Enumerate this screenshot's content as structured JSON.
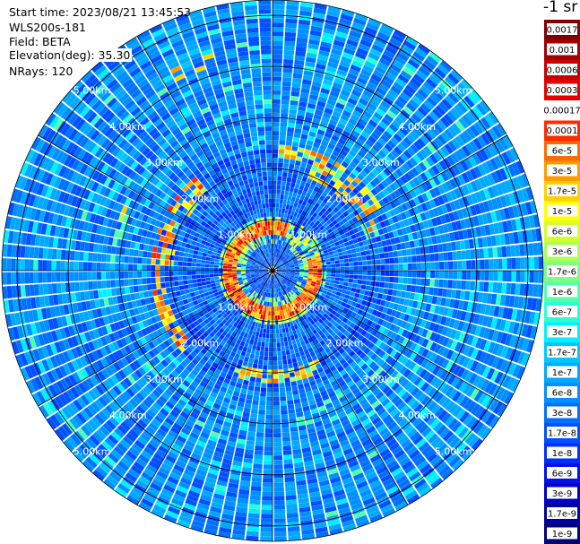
{
  "info": {
    "start_time": "Start time: 2023/08/21 13:45:53",
    "instrument": "WLS200s-181",
    "field": "Field: BETA",
    "elevation": "Elevation(deg): 35.30",
    "nrays": "NRays: 120"
  },
  "unit_label": "-1 sr",
  "chart_data": {
    "type": "heatmap",
    "projection": "polar-ppi",
    "field": "BETA",
    "n_rays": 120,
    "range_rings_km": [
      1,
      2,
      3,
      4,
      5
    ],
    "ring_labels": [
      "1.00km",
      "2.00km",
      "3.00km",
      "4.00km",
      "5.00km"
    ],
    "label_directions_deg": [
      -45,
      -135,
      45,
      135
    ],
    "colorscale": [
      {
        "label": "0.0017",
        "color": "#800000"
      },
      {
        "label": "0.001",
        "color": "#a00000"
      },
      {
        "label": "0.0006",
        "color": "#c80000"
      },
      {
        "label": "0.0003",
        "color": "#e60000"
      },
      {
        "label": "0.00017",
        "color": "#ffffff"
      },
      {
        "label": "0.0001",
        "color": "#ff2a00"
      },
      {
        "label": "6e-5",
        "color": "#ff6a00"
      },
      {
        "label": "3e-5",
        "color": "#ff9900"
      },
      {
        "label": "1.7e-5",
        "color": "#ffd000"
      },
      {
        "label": "1e-5",
        "color": "#ffff00"
      },
      {
        "label": "6e-6",
        "color": "#d4ff2a"
      },
      {
        "label": "3e-6",
        "color": "#a8ff55"
      },
      {
        "label": "1.7e-6",
        "color": "#7dff80"
      },
      {
        "label": "1e-6",
        "color": "#55ffaa"
      },
      {
        "label": "6e-7",
        "color": "#2affd4"
      },
      {
        "label": "3e-7",
        "color": "#00f0ff"
      },
      {
        "label": "1.7e-7",
        "color": "#00c8ff"
      },
      {
        "label": "1e-7",
        "color": "#00a8ff"
      },
      {
        "label": "6e-8",
        "color": "#0090ff"
      },
      {
        "label": "3e-8",
        "color": "#0070ff"
      },
      {
        "label": "1.7e-8",
        "color": "#0050ff"
      },
      {
        "label": "1e-8",
        "color": "#0030ff"
      },
      {
        "label": "6e-9",
        "color": "#0010f0"
      },
      {
        "label": "3e-9",
        "color": "#0000c8"
      },
      {
        "label": "1.7e-9",
        "color": "#0000a0"
      },
      {
        "label": "1e-9",
        "color": "#00007a"
      }
    ],
    "grid": true
  }
}
